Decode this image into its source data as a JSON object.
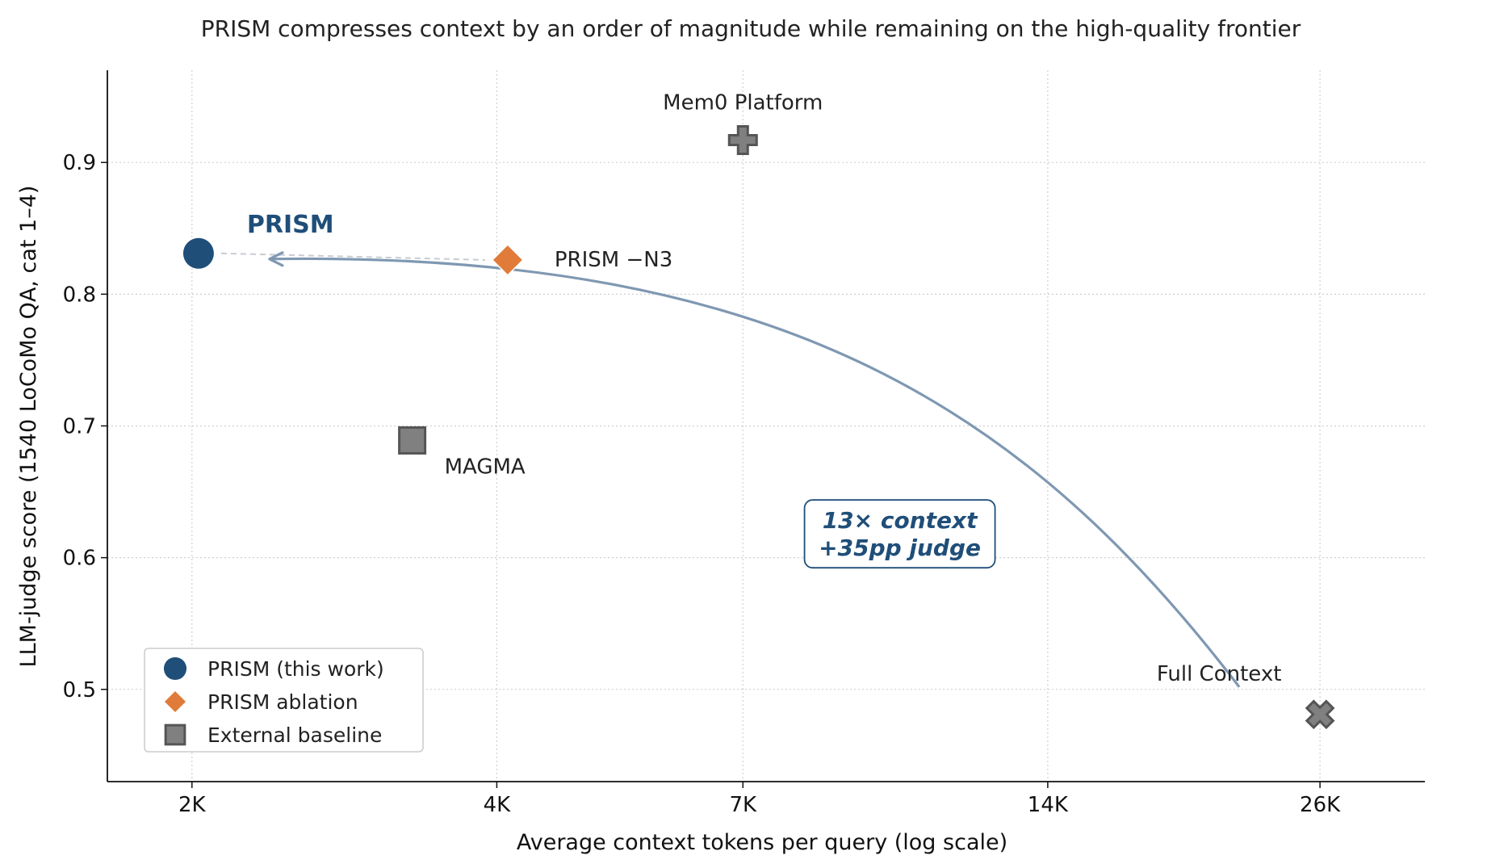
{
  "chart_data": {
    "type": "scatter",
    "title": "PRISM compresses context by an order of magnitude while remaining on the high-quality frontier",
    "xlabel": "Average context tokens per query  (log scale)",
    "ylabel": "LLM-judge score  (1540 LoCoMo QA, cat 1–4)",
    "x_scale": "log",
    "xlim": [
      1650,
      33000
    ],
    "ylim": [
      0.43,
      0.97
    ],
    "x_ticks": [
      {
        "value": 2000,
        "label": "2K"
      },
      {
        "value": 4000,
        "label": "4K"
      },
      {
        "value": 7000,
        "label": "7K"
      },
      {
        "value": 14000,
        "label": "14K"
      },
      {
        "value": 26000,
        "label": "26K"
      }
    ],
    "y_ticks": [
      {
        "value": 0.5,
        "label": "0.5"
      },
      {
        "value": 0.6,
        "label": "0.6"
      },
      {
        "value": 0.7,
        "label": "0.7"
      },
      {
        "value": 0.8,
        "label": "0.8"
      },
      {
        "value": 0.9,
        "label": "0.9"
      }
    ],
    "grid": true,
    "points": [
      {
        "name": "PRISM",
        "label": "PRISM",
        "x": 2030,
        "y": 0.831,
        "group": "PRISM (this work)",
        "marker": "circle",
        "color": "#1f4e79"
      },
      {
        "name": "PRISM-N3",
        "label": "PRISM −N3",
        "x": 4100,
        "y": 0.826,
        "group": "PRISM ablation",
        "marker": "diamond",
        "color": "#e07b39"
      },
      {
        "name": "MAGMA",
        "label": "MAGMA",
        "x": 3300,
        "y": 0.689,
        "group": "External baseline",
        "marker": "square",
        "color": "#808080"
      },
      {
        "name": "Mem0 Platform",
        "label": "Mem0 Platform",
        "x": 7000,
        "y": 0.917,
        "group": "External baseline",
        "marker": "plus",
        "color": "#808080"
      },
      {
        "name": "Full Context",
        "label": "Full Context",
        "x": 26000,
        "y": 0.481,
        "group": "External baseline",
        "marker": "x",
        "color": "#808080"
      }
    ],
    "annotation": {
      "lines": [
        "13× context",
        "+35pp judge"
      ],
      "color": "#1f4e79"
    },
    "legend": {
      "position": "lower-left",
      "entries": [
        {
          "label": "PRISM (this work)",
          "marker": "circle",
          "color": "#1f4e79"
        },
        {
          "label": "PRISM ablation",
          "marker": "diamond",
          "color": "#e07b39"
        },
        {
          "label": "External baseline",
          "marker": "square",
          "color": "#808080"
        }
      ]
    },
    "colors": {
      "prism": "#1f4e79",
      "ablation": "#e07b39",
      "baseline": "#808080",
      "arrow": "#7f98b2"
    }
  }
}
